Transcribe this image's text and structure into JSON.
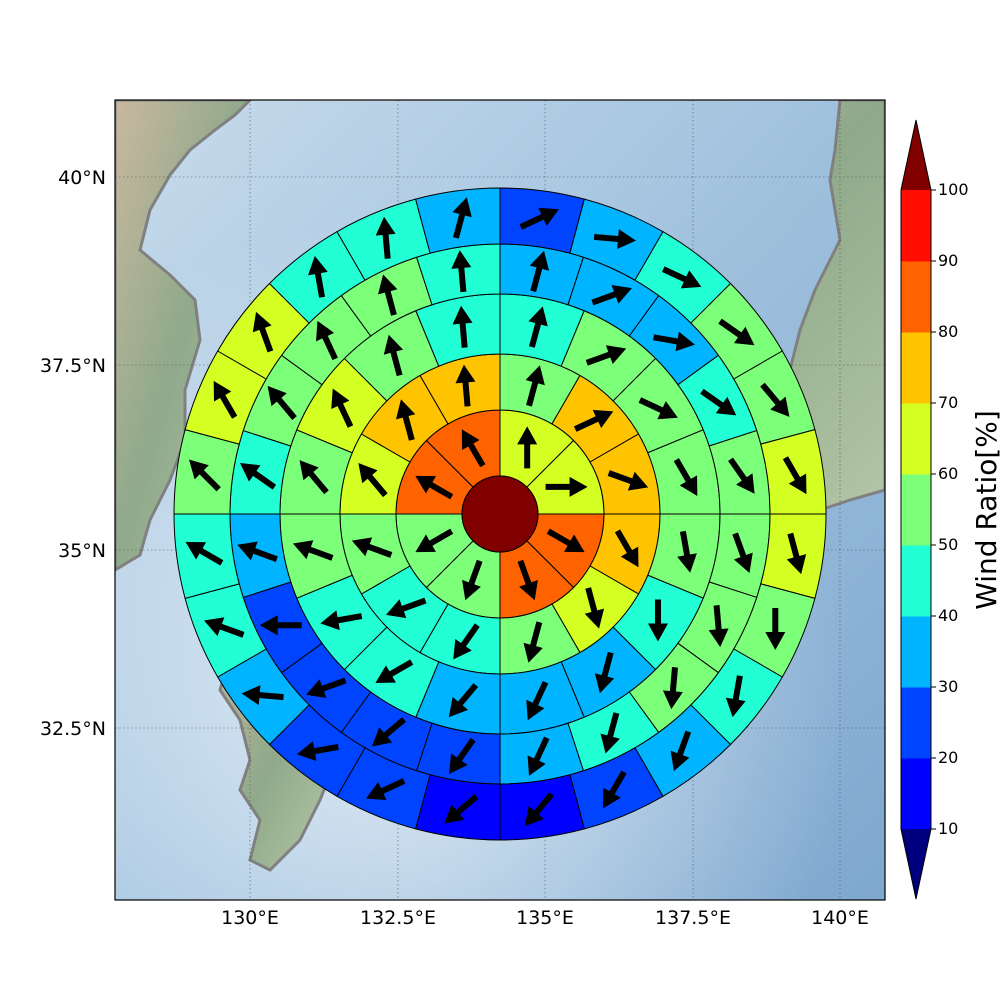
{
  "map": {
    "lon_ticks": [
      "130°E",
      "132.5°E",
      "135°E",
      "137.5°E",
      "140°E"
    ],
    "lat_ticks": [
      "40°N",
      "37.5°N",
      "35°N",
      "32.5°N"
    ],
    "colorbar_label": "Wind Ratio[%]",
    "colorbar_ticks": [
      "10",
      "20",
      "30",
      "40",
      "50",
      "60",
      "70",
      "80",
      "90",
      "100"
    ],
    "colors": {
      "under": "#00007f",
      "levels": [
        "#0000ff",
        "#0044ff",
        "#00b4ff",
        "#22ffd4",
        "#7cff79",
        "#d4ff22",
        "#ffc400",
        "#ff6300",
        "#ff0d00"
      ],
      "over": "#800000"
    },
    "center_value": 100,
    "rings": [
      {
        "name": "ring-1",
        "values": [
          65,
          65,
          85,
          85,
          55,
          55,
          85,
          85
        ]
      },
      {
        "name": "ring-2",
        "values": [
          55,
          75,
          75,
          75,
          65,
          55,
          45,
          45,
          55,
          65,
          75,
          75
        ]
      },
      {
        "name": "ring-3",
        "values": [
          45,
          55,
          55,
          55,
          55,
          45,
          35,
          35,
          35,
          45,
          45,
          55,
          55,
          65,
          55,
          45
        ]
      },
      {
        "name": "ring-4",
        "values": [
          35,
          35,
          35,
          45,
          55,
          55,
          55,
          55,
          45,
          35,
          25,
          25,
          25,
          25,
          35,
          45,
          55,
          55,
          55,
          45
        ]
      },
      {
        "name": "ring-5",
        "values": [
          25,
          35,
          45,
          55,
          55,
          65,
          65,
          55,
          45,
          35,
          25,
          15,
          15,
          25,
          25,
          35,
          45,
          45,
          55,
          65,
          65,
          45,
          45,
          35
        ]
      }
    ],
    "vectors": [
      {
        "ring": 0,
        "dirs": [
          0,
          90,
          120,
          160,
          200,
          240,
          300,
          330
        ]
      },
      {
        "ring": 1,
        "dirs": [
          15,
          65,
          110,
          150,
          165,
          195,
          215,
          250,
          290,
          320,
          345,
          355
        ]
      },
      {
        "ring": 2,
        "dirs": [
          15,
          70,
          115,
          150,
          170,
          180,
          195,
          205,
          220,
          240,
          260,
          290,
          320,
          335,
          345,
          355
        ]
      },
      {
        "ring": 3,
        "dirs": [
          15,
          70,
          100,
          125,
          145,
          160,
          175,
          185,
          195,
          205,
          215,
          230,
          250,
          270,
          290,
          305,
          320,
          335,
          345,
          355
        ]
      },
      {
        "ring": 4,
        "dirs": [
          65,
          95,
          115,
          125,
          140,
          150,
          165,
          180,
          190,
          200,
          210,
          220,
          230,
          245,
          260,
          275,
          290,
          300,
          315,
          330,
          340,
          350,
          355,
          15
        ]
      }
    ]
  }
}
